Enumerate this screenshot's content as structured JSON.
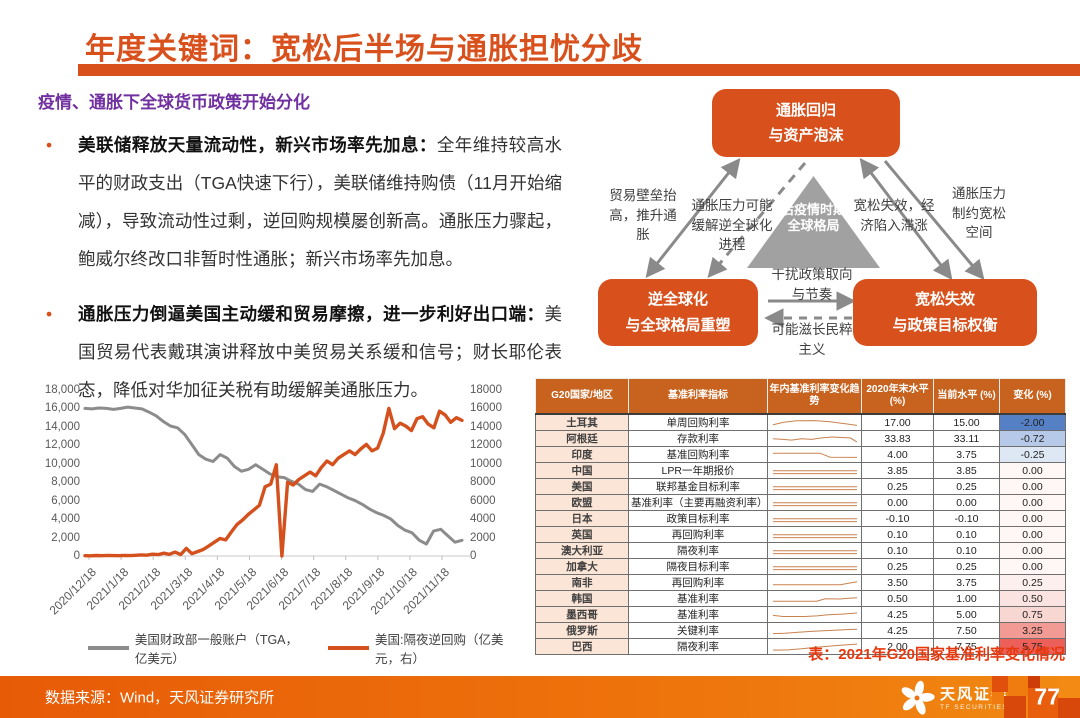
{
  "slide": {
    "title": "年度关键词：宽松后半场与通胀担忧分歧",
    "subtitle": "疫情、通胀下全球货币政策开始分化",
    "bullets": [
      {
        "bold": "美联储释放天量流动性，新兴市场率先加息：",
        "text": "全年维持较高水平的财政支出（TGA快速下行），美联储维持购债（11月开始缩减），导致流动性过剩，逆回购规模屡创新高。通胀压力骤起，鲍威尔终改口非暂时性通胀；新兴市场率先加息。"
      },
      {
        "bold": "通胀压力倒逼美国主动缓和贸易摩擦，进一步利好出口端：",
        "text": "美国贸易代表戴琪演讲释放中美贸易关系缓和信号；财长耶伦表态，降低对华加征关税有助缓解美通胀压力。"
      }
    ]
  },
  "diagram": {
    "top_box": [
      "通胀回归",
      "与资产泡沫"
    ],
    "left_box": [
      "逆全球化",
      "与全球格局重塑"
    ],
    "right_box": [
      "宽松失效",
      "与政策目标权衡"
    ],
    "triangle": "后疫情时期全球格局",
    "labels": {
      "far_left": "贸易壁垒抬高，推升通胀",
      "mid_left": "通胀压力可能缓解逆全球化进程",
      "mid_right": "宽松失效，经济陷入滞涨",
      "far_right": "通胀压力制约宽松空间",
      "h_top": "干扰政策取向与节奏",
      "h_bottom": "可能滋长民粹主义"
    }
  },
  "chart_data": {
    "type": "line",
    "title": "",
    "x_tick_labels": [
      "2020/12/18",
      "2021/1/18",
      "2021/2/18",
      "2021/3/18",
      "2021/4/18",
      "2021/5/18",
      "2021/6/18",
      "2021/7/18",
      "2021/8/18",
      "2021/9/18",
      "2021/10/18",
      "2021/11/18"
    ],
    "y_left": {
      "min": 0,
      "max": 18000,
      "step": 2000,
      "format": "comma"
    },
    "y_right": {
      "min": 0,
      "max": 18000,
      "step": 2000,
      "format": "plain"
    },
    "grid": false,
    "legend_position": "bottom",
    "series": [
      {
        "name": "美国财政部一般账户（TGA，亿美元）",
        "color": "#8C8C8C",
        "axis": "left",
        "values": [
          16000,
          15950,
          16050,
          16000,
          15900,
          16000,
          16150,
          16050,
          15950,
          15600,
          15200,
          14600,
          14100,
          13900,
          13200,
          12100,
          11000,
          10500,
          10250,
          11000,
          10600,
          9700,
          9200,
          9400,
          9900,
          9400,
          8900,
          8600,
          8500,
          8100,
          7800,
          7200,
          7000,
          7800,
          7500,
          7100,
          6700,
          6300,
          6000,
          5600,
          5100,
          4700,
          4400,
          4000,
          3300,
          2800,
          2500,
          1700,
          1300,
          2700,
          2900,
          2200,
          1500,
          1700
        ]
      },
      {
        "name": "美国:隔夜逆回购（亿美元，右）",
        "color": "#D4511E",
        "axis": "right",
        "values": [
          30,
          20,
          50,
          30,
          70,
          40,
          30,
          60,
          40,
          80,
          120,
          90,
          200,
          150,
          300,
          180,
          420,
          150,
          820,
          250,
          480,
          700,
          1100,
          1500,
          1900,
          1750,
          2600,
          3400,
          3900,
          4500,
          5000,
          5500,
          7500,
          7800,
          9900,
          0,
          8000,
          7700,
          8300,
          8700,
          9100,
          8700,
          9600,
          10300,
          9900,
          10600,
          11000,
          11400,
          11000,
          11600,
          12100,
          11400,
          11700,
          13300,
          16000,
          13800,
          14400,
          14100,
          13600,
          14900,
          15100,
          14300,
          13900,
          15700,
          15300,
          14500,
          15000,
          14700
        ]
      }
    ]
  },
  "table": {
    "headers": [
      "G20国家/地区",
      "基准利率指标",
      "年内基准利率变化趋势",
      "2020年末水平 (%)",
      "当前水平 (%)",
      "变化 (%)"
    ],
    "spark_color": "#C9824E",
    "rows": [
      {
        "country": "土耳其",
        "indicator": "单周回购利率",
        "y2020": "17.00",
        "current": "15.00",
        "change": "-2.00",
        "change_bg": "#5580C6",
        "spark": [
          [
            [
              0,
              0.35
            ],
            [
              0.12,
              0.55
            ],
            [
              0.28,
              0.7
            ],
            [
              0.5,
              0.72
            ],
            [
              0.68,
              0.62
            ],
            [
              0.85,
              0.45
            ],
            [
              1,
              0.28
            ]
          ]
        ]
      },
      {
        "country": "阿根廷",
        "indicator": "存款利率",
        "y2020": "33.83",
        "current": "33.11",
        "change": "-0.72",
        "change_bg": "#B7C9E8",
        "spark": [
          [
            [
              0,
              0.52
            ],
            [
              0.1,
              0.48
            ],
            [
              0.22,
              0.4
            ],
            [
              0.34,
              0.52
            ],
            [
              0.46,
              0.46
            ],
            [
              0.58,
              0.6
            ],
            [
              0.7,
              0.68
            ],
            [
              0.82,
              0.64
            ],
            [
              0.92,
              0.6
            ],
            [
              1,
              0.22
            ]
          ]
        ]
      },
      {
        "country": "印度",
        "indicator": "基准回购利率",
        "y2020": "4.00",
        "current": "3.75",
        "change": "-0.25",
        "change_bg": "#DEE8F5",
        "spark": [
          [
            [
              0,
              0.66
            ],
            [
              0.56,
              0.66
            ],
            [
              0.68,
              0.3
            ],
            [
              1,
              0.28
            ]
          ]
        ]
      },
      {
        "country": "中国",
        "indicator": "LPR一年期报价",
        "y2020": "3.85",
        "current": "3.85",
        "change": "0.00",
        "change_bg": "#FEF7F6",
        "spark": [
          [
            [
              0,
              0.52
            ],
            [
              1,
              0.52
            ]
          ],
          [
            [
              0,
              0.26
            ],
            [
              1,
              0.26
            ]
          ]
        ]
      },
      {
        "country": "美国",
        "indicator": "联邦基金目标利率",
        "y2020": "0.25",
        "current": "0.25",
        "change": "0.00",
        "change_bg": "#FEF7F6",
        "spark": [
          [
            [
              0,
              0.52
            ],
            [
              1,
              0.52
            ]
          ],
          [
            [
              0,
              0.26
            ],
            [
              1,
              0.26
            ]
          ]
        ]
      },
      {
        "country": "欧盟",
        "indicator": "基准利率（主要再融资利率）",
        "y2020": "0.00",
        "current": "0.00",
        "change": "0.00",
        "change_bg": "#FEF7F6",
        "spark": [
          [
            [
              0,
              0.52
            ],
            [
              1,
              0.52
            ]
          ],
          [
            [
              0,
              0.26
            ],
            [
              1,
              0.26
            ]
          ]
        ]
      },
      {
        "country": "日本",
        "indicator": "政策目标利率",
        "y2020": "-0.10",
        "current": "-0.10",
        "change": "0.00",
        "change_bg": "#FEF7F6",
        "spark": [
          [
            [
              0,
              0.52
            ],
            [
              1,
              0.52
            ]
          ],
          [
            [
              0,
              0.26
            ],
            [
              1,
              0.26
            ]
          ]
        ]
      },
      {
        "country": "英国",
        "indicator": "再回购利率",
        "y2020": "0.10",
        "current": "0.10",
        "change": "0.00",
        "change_bg": "#FEF7F6",
        "spark": [
          [
            [
              0,
              0.52
            ],
            [
              1,
              0.52
            ]
          ],
          [
            [
              0,
              0.26
            ],
            [
              1,
              0.26
            ]
          ]
        ]
      },
      {
        "country": "澳大利亚",
        "indicator": "隔夜利率",
        "y2020": "0.10",
        "current": "0.10",
        "change": "0.00",
        "change_bg": "#FEF7F6",
        "spark": [
          [
            [
              0,
              0.52
            ],
            [
              1,
              0.52
            ]
          ],
          [
            [
              0,
              0.26
            ],
            [
              1,
              0.26
            ]
          ]
        ]
      },
      {
        "country": "加拿大",
        "indicator": "隔夜目标利率",
        "y2020": "0.25",
        "current": "0.25",
        "change": "0.00",
        "change_bg": "#FEF7F6",
        "spark": [
          [
            [
              0,
              0.52
            ],
            [
              1,
              0.52
            ]
          ],
          [
            [
              0,
              0.26
            ],
            [
              1,
              0.26
            ]
          ]
        ]
      },
      {
        "country": "南非",
        "indicator": "再回购利率",
        "y2020": "3.50",
        "current": "3.75",
        "change": "0.25",
        "change_bg": "#FCEFED",
        "spark": [
          [
            [
              0,
              0.34
            ],
            [
              0.8,
              0.34
            ],
            [
              1,
              0.62
            ]
          ]
        ]
      },
      {
        "country": "韩国",
        "indicator": "基准利率",
        "y2020": "0.50",
        "current": "1.00",
        "change": "0.50",
        "change_bg": "#FAE3E0",
        "spark": [
          [
            [
              0,
              0.3
            ],
            [
              0.52,
              0.3
            ],
            [
              0.62,
              0.52
            ],
            [
              0.8,
              0.5
            ],
            [
              0.9,
              0.56
            ],
            [
              1,
              0.62
            ]
          ]
        ]
      },
      {
        "country": "墨西哥",
        "indicator": "基准利率",
        "y2020": "4.25",
        "current": "5.00",
        "change": "0.75",
        "change_bg": "#F8D6D2",
        "spark": [
          [
            [
              0,
              0.46
            ],
            [
              0.12,
              0.36
            ],
            [
              0.38,
              0.36
            ],
            [
              0.52,
              0.42
            ],
            [
              0.66,
              0.52
            ],
            [
              0.82,
              0.58
            ],
            [
              1,
              0.68
            ]
          ]
        ]
      },
      {
        "country": "俄罗斯",
        "indicator": "关键利率",
        "y2020": "4.25",
        "current": "7.50",
        "change": "3.25",
        "change_bg": "#F29B94",
        "spark": [
          [
            [
              0,
              0.26
            ],
            [
              0.14,
              0.3
            ],
            [
              0.3,
              0.38
            ],
            [
              0.46,
              0.46
            ],
            [
              0.6,
              0.52
            ],
            [
              0.76,
              0.58
            ],
            [
              0.9,
              0.64
            ],
            [
              1,
              0.66
            ]
          ]
        ]
      },
      {
        "country": "巴西",
        "indicator": "隔夜利率",
        "y2020": "2.00",
        "current": "7.75",
        "change": "5.75",
        "change_bg": "#EC6059",
        "spark": [
          [
            [
              0,
              0.22
            ],
            [
              0.18,
              0.24
            ],
            [
              0.34,
              0.34
            ],
            [
              0.5,
              0.46
            ],
            [
              0.66,
              0.56
            ],
            [
              0.8,
              0.66
            ],
            [
              1,
              0.76
            ]
          ]
        ]
      }
    ],
    "caption": "表：2021年G20国家基准利率变化情况"
  },
  "footer": {
    "source": "数据来源：Wind，天风证券研究所",
    "brand": "天风证券",
    "brand_en": "TF SECURITIES",
    "page": "77"
  },
  "colors": {
    "accent": "#D8511D",
    "subtitle": "#7030A0",
    "table_header_bg": "#C7631F",
    "country_col_bg": "#FBE5D6",
    "caption": "#E6380F",
    "triangle_gray": "#A1A1A1",
    "arrow_gray": "#8A8A8A"
  }
}
